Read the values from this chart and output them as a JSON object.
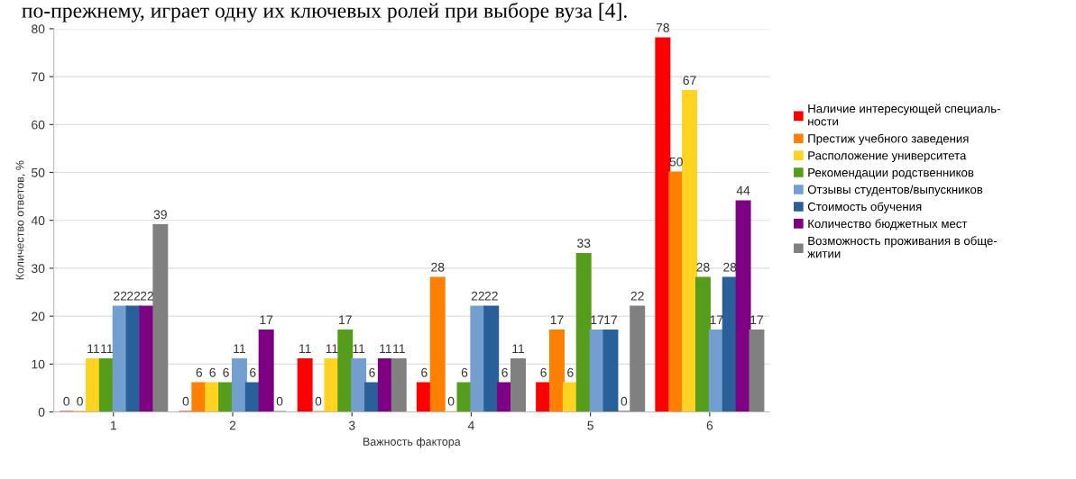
{
  "chart_data": {
    "type": "bar",
    "xlabel": "Важность фактора",
    "ylabel": "Количество ответов, %",
    "categories": [
      "1",
      "2",
      "3",
      "4",
      "5",
      "6"
    ],
    "series": [
      {
        "name": "Наличие интересующей специаль-\nности",
        "color": "#ff0000",
        "values": [
          0,
          0,
          11,
          6,
          6,
          78
        ]
      },
      {
        "name": "Престиж учебного заведения",
        "color": "#ff8000",
        "values": [
          0,
          6,
          0,
          28,
          17,
          50
        ]
      },
      {
        "name": "Расположение университета",
        "color": "#ffd320",
        "values": [
          11,
          6,
          11,
          0,
          6,
          67
        ]
      },
      {
        "name": "Рекомендации родственников",
        "color": "#579d1c",
        "values": [
          11,
          6,
          17,
          6,
          33,
          28
        ]
      },
      {
        "name": "Отзывы студентов/выпускников",
        "color": "#729fcf",
        "values": [
          22,
          11,
          11,
          22,
          17,
          17
        ]
      },
      {
        "name": "Стоимость обучения",
        "color": "#2a6099",
        "values": [
          22,
          6,
          6,
          22,
          17,
          28
        ]
      },
      {
        "name": "Количество бюджетных мест",
        "color": "#7e0083",
        "values": [
          22,
          17,
          11,
          6,
          0,
          44
        ]
      },
      {
        "name": "Возможность проживания в обще-\nжитии",
        "color": "#808080",
        "values": [
          39,
          0,
          11,
          11,
          22,
          17
        ]
      }
    ],
    "ylim": [
      0,
      80
    ],
    "yticks": [
      0,
      10,
      20,
      30,
      40,
      50,
      60,
      70,
      80
    ],
    "grid": "y",
    "legend": "right",
    "data_labels": true,
    "annotations": [
      "по-прежнему, играет одну их ключевых ролей при выборе вуза [4]."
    ]
  }
}
